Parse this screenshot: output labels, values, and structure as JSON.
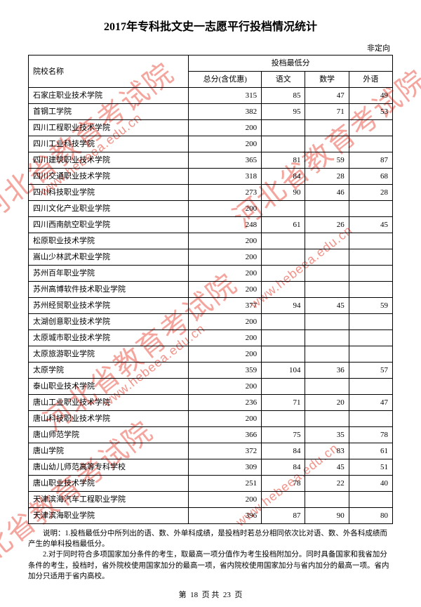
{
  "title": "2017年专科批文史一志愿平行投档情况统计",
  "category": "非定向",
  "headers": {
    "school": "院校名称",
    "score_group": "投档最低分",
    "total": "总分(含优惠)",
    "chinese": "语文",
    "math": "数学",
    "foreign": "外语"
  },
  "rows": [
    {
      "name": "石家庄职业技术学院",
      "total": "315",
      "chi": "85",
      "math": "47",
      "for": "49"
    },
    {
      "name": "首钢工学院",
      "total": "382",
      "chi": "95",
      "math": "71",
      "for": "53"
    },
    {
      "name": "四川工程职业技术学院",
      "total": "200",
      "chi": "",
      "math": "",
      "for": ""
    },
    {
      "name": "四川工业科技学院",
      "total": "200",
      "chi": "",
      "math": "",
      "for": ""
    },
    {
      "name": "四川建筑职业技术学院",
      "total": "365",
      "chi": "81",
      "math": "59",
      "for": "87"
    },
    {
      "name": "四川交通职业技术学院",
      "total": "318",
      "chi": "84",
      "math": "28",
      "for": "68"
    },
    {
      "name": "四川科技职业学院",
      "total": "273",
      "chi": "90",
      "math": "46",
      "for": "28"
    },
    {
      "name": "四川文化产业职业学院",
      "total": "200",
      "chi": "",
      "math": "",
      "for": ""
    },
    {
      "name": "四川西南航空职业学院",
      "total": "248",
      "chi": "61",
      "math": "26",
      "for": "45"
    },
    {
      "name": "松原职业技术学院",
      "total": "200",
      "chi": "",
      "math": "",
      "for": ""
    },
    {
      "name": "嵩山少林武术职业学院",
      "total": "200",
      "chi": "",
      "math": "",
      "for": ""
    },
    {
      "name": "苏州百年职业学院",
      "total": "200",
      "chi": "",
      "math": "",
      "for": ""
    },
    {
      "name": "苏州高博软件技术职业学院",
      "total": "200",
      "chi": "",
      "math": "",
      "for": ""
    },
    {
      "name": "苏州经贸职业技术学院",
      "total": "377",
      "chi": "94",
      "math": "45",
      "for": "59"
    },
    {
      "name": "太湖创意职业技术学院",
      "total": "200",
      "chi": "",
      "math": "",
      "for": ""
    },
    {
      "name": "太原城市职业技术学院",
      "total": "200",
      "chi": "",
      "math": "",
      "for": ""
    },
    {
      "name": "太原旅游职业学院",
      "total": "200",
      "chi": "",
      "math": "",
      "for": ""
    },
    {
      "name": "太原学院",
      "total": "359",
      "chi": "104",
      "math": "36",
      "for": "57"
    },
    {
      "name": "泰山职业技术学院",
      "total": "200",
      "chi": "",
      "math": "",
      "for": ""
    },
    {
      "name": "唐山工业职业技术学院",
      "total": "236",
      "chi": "71",
      "math": "20",
      "for": "47"
    },
    {
      "name": "唐山科技职业技术学院",
      "total": "200",
      "chi": "",
      "math": "",
      "for": ""
    },
    {
      "name": "唐山师范学院",
      "total": "366",
      "chi": "75",
      "math": "35",
      "for": "78"
    },
    {
      "name": "唐山学院",
      "total": "372",
      "chi": "84",
      "math": "83",
      "for": "61"
    },
    {
      "name": "唐山幼儿师范高等专科学校",
      "total": "309",
      "chi": "84",
      "math": "45",
      "for": "51"
    },
    {
      "name": "唐山职业技术学院",
      "total": "251",
      "chi": "78",
      "math": "22",
      "for": "40"
    },
    {
      "name": "天津滨海汽车工程职业学院",
      "total": "200",
      "chi": "",
      "math": "",
      "for": ""
    },
    {
      "name": "天津滨海职业学院",
      "total": "396",
      "chi": "87",
      "math": "90",
      "for": "80"
    }
  ],
  "notes": "说明：1.投档最低分中所列出的语、数、外单科成绩，是投档时若总分相同依次比对语、数、外各科成绩而产生的单科投档最低分。\n2.对于同时符合多项国家加分条件的考生，取最高一项分值作为考生投档附加分。同时具备国家和我省加分条件的考生，投档时，省外院校使用国家加分的最高一项，省内院校使用国家加分与省内加分的最高一项。省内加分只适用于省内高校。",
  "footer": {
    "prefix": "第",
    "page": "18",
    "mid": "页 共",
    "total": "23",
    "suffix": "页"
  },
  "watermarks": {
    "main": "河北省教育考试院",
    "url": "www.hebeea.edu.cn"
  },
  "style": {
    "watermark_color": "#e83a2a",
    "border_color": "#000000",
    "bg": "#ffffff"
  }
}
